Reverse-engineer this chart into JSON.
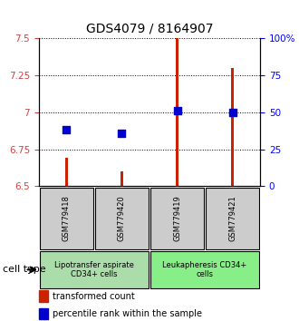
{
  "title": "GDS4079 / 8164907",
  "samples": [
    "GSM779418",
    "GSM779420",
    "GSM779419",
    "GSM779421"
  ],
  "red_values": [
    6.69,
    6.6,
    7.5,
    7.3
  ],
  "blue_values": [
    6.88,
    6.86,
    7.01,
    7.0
  ],
  "ylim_left": [
    6.5,
    7.5
  ],
  "ylim_right": [
    0,
    100
  ],
  "yticks_left": [
    6.5,
    6.75,
    7.0,
    7.25,
    7.5
  ],
  "ytick_labels_left": [
    "6.5",
    "6.75",
    "7",
    "7.25",
    "7.5"
  ],
  "yticks_right": [
    0,
    25,
    50,
    75,
    100
  ],
  "ytick_labels_right": [
    "0",
    "25",
    "50",
    "75",
    "100%"
  ],
  "groups": [
    {
      "label": "Lipotransfer aspirate\nCD34+ cells",
      "color": "#aaddaa",
      "samples": [
        0,
        1
      ]
    },
    {
      "label": "Leukapheresis CD34+\ncells",
      "color": "#88ee88",
      "samples": [
        2,
        3
      ]
    }
  ],
  "sample_box_color": "#cccccc",
  "bar_color": "#cc2200",
  "dot_color": "#0000cc",
  "bar_width": 0.06,
  "dot_size": 30,
  "legend_red": "transformed count",
  "legend_blue": "percentile rank within the sample",
  "cell_type_label": "cell type",
  "grid_color": "black",
  "title_fontsize": 10,
  "tick_fontsize": 7.5,
  "sample_fontsize": 6,
  "group_fontsize": 6,
  "legend_fontsize": 7
}
